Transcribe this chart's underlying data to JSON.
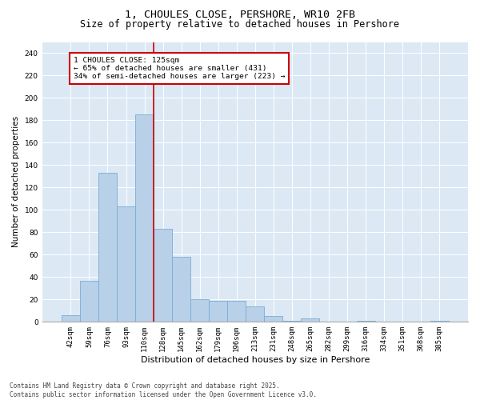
{
  "title_line1": "1, CHOULES CLOSE, PERSHORE, WR10 2FB",
  "title_line2": "Size of property relative to detached houses in Pershore",
  "xlabel": "Distribution of detached houses by size in Pershore",
  "ylabel": "Number of detached properties",
  "bar_labels": [
    "42sqm",
    "59sqm",
    "76sqm",
    "93sqm",
    "110sqm",
    "128sqm",
    "145sqm",
    "162sqm",
    "179sqm",
    "196sqm",
    "213sqm",
    "231sqm",
    "248sqm",
    "265sqm",
    "282sqm",
    "299sqm",
    "316sqm",
    "334sqm",
    "351sqm",
    "368sqm",
    "385sqm"
  ],
  "bar_values": [
    6,
    37,
    133,
    103,
    185,
    83,
    58,
    20,
    19,
    19,
    14,
    5,
    1,
    3,
    0,
    0,
    1,
    0,
    0,
    0,
    1
  ],
  "bar_color": "#b8d0e8",
  "bar_edgecolor": "#7aaed4",
  "vline_color": "#cc0000",
  "annotation_text": "1 CHOULES CLOSE: 125sqm\n← 65% of detached houses are smaller (431)\n34% of semi-detached houses are larger (223) →",
  "annotation_box_edgecolor": "#cc0000",
  "ylim": [
    0,
    250
  ],
  "yticks": [
    0,
    20,
    40,
    60,
    80,
    100,
    120,
    140,
    160,
    180,
    200,
    220,
    240
  ],
  "background_color": "#dce9f5",
  "footer_text": "Contains HM Land Registry data © Crown copyright and database right 2025.\nContains public sector information licensed under the Open Government Licence v3.0.",
  "title_fontsize": 9.5,
  "subtitle_fontsize": 8.5,
  "tick_fontsize": 6.5,
  "ylabel_fontsize": 7.5,
  "xlabel_fontsize": 8,
  "annotation_fontsize": 6.8,
  "footer_fontsize": 5.5
}
